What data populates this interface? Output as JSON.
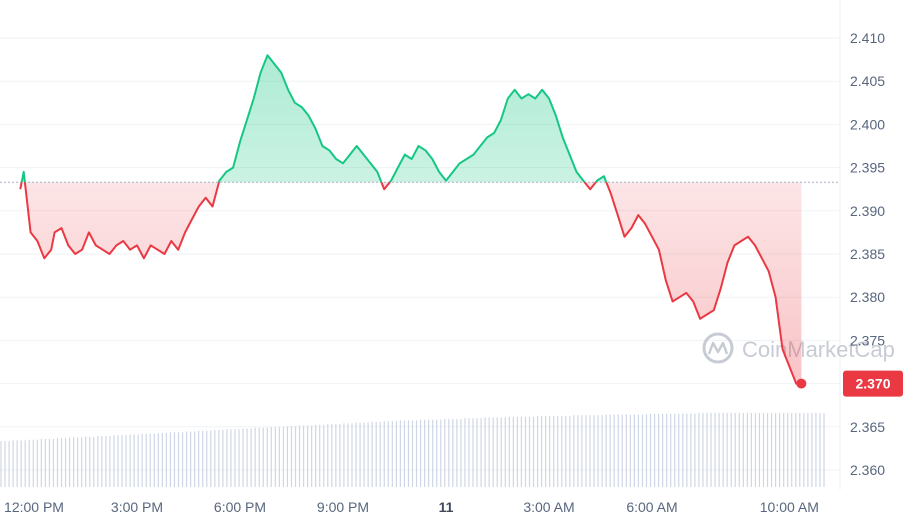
{
  "chart_data": {
    "type": "line",
    "baseline": 2.3933,
    "last_price_label": "2.370",
    "watermark": "CoinMarketCap",
    "ylim": [
      2.358,
      2.413
    ],
    "y_ticks": [
      {
        "value": 2.36,
        "label": "2.360"
      },
      {
        "value": 2.365,
        "label": "2.365"
      },
      {
        "value": 2.37,
        "label": "2.370"
      },
      {
        "value": 2.375,
        "label": "2.375"
      },
      {
        "value": 2.38,
        "label": "2.380"
      },
      {
        "value": 2.385,
        "label": "2.385"
      },
      {
        "value": 2.39,
        "label": "2.390"
      },
      {
        "value": 2.395,
        "label": "2.395"
      },
      {
        "value": 2.4,
        "label": "2.400"
      },
      {
        "value": 2.405,
        "label": "2.405"
      },
      {
        "value": 2.41,
        "label": "2.410"
      }
    ],
    "x_ticks": [
      {
        "label": "12:00 PM",
        "hour": 12,
        "bold": false
      },
      {
        "label": "3:00 PM",
        "hour": 15,
        "bold": false
      },
      {
        "label": "6:00 PM",
        "hour": 18,
        "bold": false
      },
      {
        "label": "9:00 PM",
        "hour": 21,
        "bold": false
      },
      {
        "label": "11",
        "hour": 24,
        "bold": true
      },
      {
        "label": "3:00 AM",
        "hour": 27,
        "bold": false
      },
      {
        "label": "6:00 AM",
        "hour": 30,
        "bold": false
      },
      {
        "label": "10:00 AM",
        "hour": 34,
        "bold": false
      }
    ],
    "colors": {
      "up": "#16c784",
      "down": "#ea3943",
      "grid": "#eff2f5",
      "baseline": "#a6b0c3",
      "volume": "#cfd6e4"
    },
    "x_hours": [
      11.6,
      11.7,
      11.9,
      12.1,
      12.3,
      12.5,
      12.6,
      12.8,
      13.0,
      13.2,
      13.4,
      13.6,
      13.8,
      14.0,
      14.2,
      14.4,
      14.6,
      14.8,
      15.0,
      15.2,
      15.4,
      15.6,
      15.8,
      16.0,
      16.2,
      16.4,
      16.6,
      16.8,
      17.0,
      17.2,
      17.4,
      17.6,
      17.8,
      18.0,
      18.2,
      18.4,
      18.6,
      18.8,
      19.0,
      19.2,
      19.4,
      19.6,
      19.8,
      20.0,
      20.2,
      20.4,
      20.6,
      20.8,
      21.0,
      21.2,
      21.4,
      21.6,
      21.8,
      22.0,
      22.2,
      22.4,
      22.6,
      22.8,
      23.0,
      23.2,
      23.4,
      23.6,
      23.8,
      24.0,
      24.2,
      24.4,
      24.6,
      24.8,
      25.0,
      25.2,
      25.4,
      25.6,
      25.8,
      26.0,
      26.2,
      26.4,
      26.6,
      26.8,
      27.0,
      27.2,
      27.4,
      27.6,
      27.8,
      28.0,
      28.2,
      28.4,
      28.6,
      28.8,
      29.0,
      29.2,
      29.4,
      29.6,
      29.8,
      30.0,
      30.2,
      30.4,
      30.6,
      30.8,
      31.0,
      31.2,
      31.4,
      31.6,
      31.8,
      32.0,
      32.2,
      32.4,
      32.6,
      32.8,
      33.0,
      33.2,
      33.4,
      33.6,
      33.8,
      34.0,
      34.2,
      34.35
    ],
    "y_prices": [
      2.3925,
      2.3945,
      2.3875,
      2.3865,
      2.3845,
      2.3855,
      2.3875,
      2.388,
      2.386,
      2.385,
      2.3855,
      2.3875,
      2.386,
      2.3855,
      2.385,
      2.386,
      2.3865,
      2.3855,
      2.386,
      2.3845,
      2.386,
      2.3855,
      2.385,
      2.3865,
      2.3855,
      2.3875,
      2.389,
      2.3905,
      2.3915,
      2.3905,
      2.3935,
      2.3945,
      2.395,
      2.398,
      2.4005,
      2.403,
      2.406,
      2.408,
      2.407,
      2.406,
      2.404,
      2.4025,
      2.402,
      2.401,
      2.3995,
      2.3975,
      2.397,
      2.396,
      2.3955,
      2.3965,
      2.3975,
      2.3965,
      2.3955,
      2.3945,
      2.3925,
      2.3935,
      2.395,
      2.3965,
      2.396,
      2.3975,
      2.397,
      2.396,
      2.3945,
      2.3935,
      2.3945,
      2.3955,
      2.396,
      2.3965,
      2.3975,
      2.3985,
      2.399,
      2.4005,
      2.403,
      2.404,
      2.403,
      2.4035,
      2.403,
      2.404,
      2.403,
      2.401,
      2.3985,
      2.3965,
      2.3945,
      2.3935,
      2.3925,
      2.3935,
      2.394,
      2.392,
      2.3895,
      2.387,
      2.388,
      2.3895,
      2.3885,
      2.387,
      2.3855,
      2.382,
      2.3795,
      2.38,
      2.3805,
      2.3795,
      2.3775,
      2.378,
      2.3785,
      2.381,
      2.384,
      2.386,
      2.3865,
      2.387,
      2.386,
      2.3845,
      2.383,
      2.38,
      2.374,
      2.372,
      2.37,
      2.37
    ],
    "volume": [
      0.62,
      0.62,
      0.63,
      0.63,
      0.64,
      0.64,
      0.65,
      0.65,
      0.66,
      0.66,
      0.67,
      0.67,
      0.68,
      0.68,
      0.69,
      0.69,
      0.7,
      0.7,
      0.71,
      0.71,
      0.72,
      0.72,
      0.73,
      0.73,
      0.74,
      0.74,
      0.75,
      0.75,
      0.76,
      0.76,
      0.77,
      0.77,
      0.78,
      0.78,
      0.79,
      0.79,
      0.8,
      0.8,
      0.81,
      0.81,
      0.82,
      0.82,
      0.83,
      0.83,
      0.84,
      0.84,
      0.85,
      0.85,
      0.86,
      0.86,
      0.87,
      0.87,
      0.88,
      0.88,
      0.89,
      0.89,
      0.9,
      0.9,
      0.9,
      0.91,
      0.91,
      0.91,
      0.92,
      0.92,
      0.92,
      0.93,
      0.93,
      0.93,
      0.94,
      0.94,
      0.94,
      0.95,
      0.95,
      0.95,
      0.95,
      0.96,
      0.96,
      0.96,
      0.96,
      0.96,
      0.97,
      0.97,
      0.97,
      0.97,
      0.97,
      0.98,
      0.98,
      0.98,
      0.98,
      0.98,
      0.98,
      0.99,
      0.99,
      0.99,
      0.99,
      0.99,
      0.99,
      0.99,
      1.0,
      1.0,
      1.0,
      1.0,
      1.0,
      1.0,
      1.0,
      1.0,
      1.0,
      1.0,
      1.0,
      1.0,
      1.0,
      1.0,
      1.0,
      1.0,
      1.0,
      1.0
    ]
  }
}
